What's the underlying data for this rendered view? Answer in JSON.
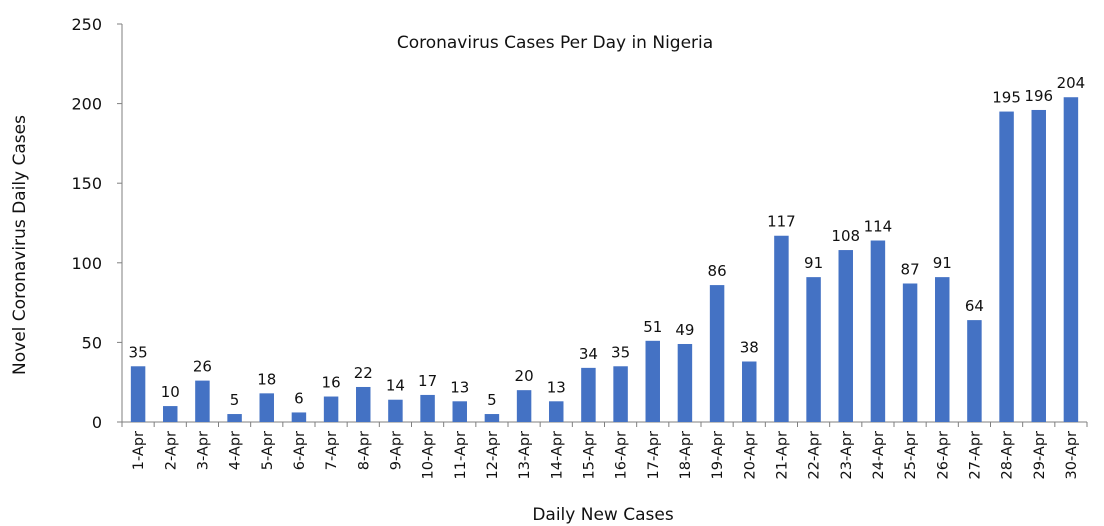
{
  "chart_data": {
    "type": "bar",
    "title": "Coronavirus Cases Per Day in Nigeria",
    "xlabel": "Daily New Cases",
    "ylabel": "Novel Coronavirus Daily Cases",
    "ylim": [
      0,
      250
    ],
    "yticks": [
      0,
      50,
      100,
      150,
      200,
      250
    ],
    "grid": false,
    "bar_color": "#4472C4",
    "categories": [
      "1-Apr",
      "2-Apr",
      "3-Apr",
      "4-Apr",
      "5-Apr",
      "6-Apr",
      "7-Apr",
      "8-Apr",
      "9-Apr",
      "10-Apr",
      "11-Apr",
      "12-Apr",
      "13-Apr",
      "14-Apr",
      "15-Apr",
      "16-Apr",
      "17-Apr",
      "18-Apr",
      "19-Apr",
      "20-Apr",
      "21-Apr",
      "22-Apr",
      "23-Apr",
      "24-Apr",
      "25-Apr",
      "26-Apr",
      "27-Apr",
      "28-Apr",
      "29-Apr",
      "30-Apr"
    ],
    "values": [
      35,
      10,
      26,
      5,
      18,
      6,
      16,
      22,
      14,
      17,
      13,
      5,
      20,
      13,
      34,
      35,
      51,
      49,
      86,
      38,
      117,
      91,
      108,
      114,
      87,
      91,
      64,
      195,
      196,
      204
    ]
  }
}
